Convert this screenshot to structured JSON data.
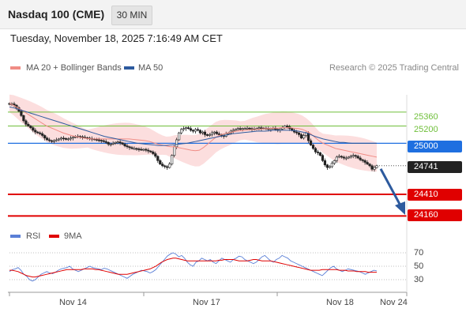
{
  "header": {
    "title": "Nasdaq 100 (CME)",
    "timeframe": "30 MIN"
  },
  "timestamp": "Tuesday, November 18, 2025 7:16:49 AM CET",
  "legend": {
    "ma20_label": "MA 20 + Bollinger Bands",
    "ma50_label": "MA 50",
    "ma20_color": "#f08c85",
    "ma50_color": "#2d5a9e"
  },
  "research_text": "Research © 2025 Trading Central",
  "levels": {
    "resistance_2": "25360",
    "resistance_1": "25200",
    "pivot": "25000",
    "current": "24741",
    "support_1": "24410",
    "support_2": "24160",
    "colors": {
      "resistance": "#6fbf3a",
      "pivot": "#1f6fe0",
      "current": "#222222",
      "support": "#e00000"
    }
  },
  "rsi_legend": {
    "rsi_label": "RSI",
    "ma_label": "9MA",
    "rsi_color": "#5a7fd6",
    "ma_color": "#e00000"
  },
  "rsi_levels": [
    "70",
    "50",
    "30"
  ],
  "x_axis": [
    "Nov 14",
    "Nov 17",
    "Nov 18",
    "Nov 24"
  ],
  "chart_data": {
    "type": "candlestick",
    "ylim": [
      24100,
      25560
    ],
    "close": [
      25450,
      25455,
      25440,
      25410,
      25370,
      25320,
      25260,
      25220,
      25200,
      25180,
      25150,
      25130,
      25120,
      25110,
      25090,
      25060,
      25040,
      25030,
      25025,
      25030,
      25040,
      25050,
      25060,
      25055,
      25045,
      25050,
      25060,
      25070,
      25075,
      25080,
      25075,
      25070,
      25065,
      25060,
      25055,
      25050,
      25045,
      25040,
      25035,
      25030,
      25020,
      25010,
      24990,
      24990,
      25000,
      25010,
      25015,
      25005,
      24990,
      24970,
      24960,
      24950,
      24940,
      24940,
      24935,
      24930,
      24925,
      24930,
      24920,
      24910,
      24900,
      24880,
      24850,
      24800,
      24760,
      24740,
      24730,
      24720,
      24760,
      24860,
      24960,
      25040,
      25120,
      25160,
      25170,
      25180,
      25170,
      25150,
      25140,
      25160,
      25150,
      25120,
      25130,
      25100,
      25090,
      25100,
      25120,
      25130,
      25110,
      25100,
      25090,
      25080,
      25110,
      25120,
      25140,
      25150,
      25160,
      25170,
      25165,
      25170,
      25170,
      25175,
      25170,
      25160,
      25165,
      25170,
      25180,
      25170,
      25175,
      25170,
      25160,
      25170,
      25175,
      25160,
      25150,
      25165,
      25180,
      25200,
      25190,
      25170,
      25150,
      25130,
      25120,
      25100,
      25060,
      25090,
      25120,
      25030,
      24980,
      24940,
      24900,
      24890,
      24860,
      24800,
      24750,
      24720,
      24730,
      24770,
      24800,
      24840,
      24850,
      24840,
      24830,
      24830,
      24840,
      24850,
      24860,
      24850,
      24830,
      24810,
      24800,
      24780,
      24760,
      24740,
      24700,
      24720,
      24741
    ],
    "rsi": [
      42,
      45,
      46,
      48,
      44,
      38,
      35,
      30,
      28,
      30,
      34,
      38,
      40,
      42,
      40,
      39,
      41,
      44,
      46,
      47,
      48,
      50,
      46,
      44,
      42,
      44,
      46,
      48,
      50,
      48,
      47,
      46,
      45,
      47,
      46,
      44,
      42,
      40,
      38,
      36,
      34,
      32,
      35,
      38,
      40,
      42,
      44,
      43,
      42,
      40,
      42,
      45,
      50,
      55,
      60,
      65,
      68,
      70,
      68,
      64,
      66,
      62,
      56,
      52,
      50,
      56,
      58,
      62,
      60,
      58,
      60,
      56,
      54,
      58,
      62,
      60,
      58,
      56,
      60,
      62,
      65,
      64,
      60,
      58,
      56,
      54,
      56,
      60,
      64,
      66,
      62,
      58,
      56,
      60,
      62,
      66,
      64,
      62,
      58,
      56,
      54,
      52,
      50,
      48,
      46,
      44,
      42,
      40,
      38,
      36,
      40,
      44,
      48,
      50,
      46,
      44,
      42,
      44,
      46,
      45,
      44,
      43,
      42,
      40,
      38,
      40,
      42,
      44,
      43
    ],
    "rsi_ma": [
      44,
      44,
      43,
      42,
      40,
      38,
      36,
      35,
      34,
      34,
      35,
      36,
      37,
      38,
      39,
      40,
      41,
      42,
      43,
      44,
      45,
      45,
      45,
      45,
      45,
      45,
      46,
      46,
      46,
      46,
      45,
      45,
      44,
      43,
      42,
      41,
      40,
      39,
      38,
      38,
      38,
      38,
      39,
      40,
      41,
      42,
      43,
      44,
      45,
      46,
      48,
      50,
      53,
      56,
      58,
      60,
      61,
      62,
      62,
      61,
      60,
      59,
      58,
      58,
      58,
      58,
      58,
      58,
      58,
      58,
      58,
      58,
      58,
      59,
      59,
      60,
      60,
      60,
      60,
      59,
      58,
      58,
      58,
      58,
      59,
      60,
      60,
      59,
      58,
      58,
      58,
      58,
      57,
      56,
      55,
      54,
      53,
      52,
      51,
      50,
      49,
      48,
      47,
      46,
      45,
      44,
      44,
      44,
      44,
      45,
      45,
      45,
      45,
      45,
      45,
      44,
      44,
      44,
      43,
      43,
      43,
      42,
      42,
      42,
      42,
      41,
      41,
      41,
      41
    ],
    "ma20": [
      25460,
      25440,
      25410,
      25380,
      25350,
      25320,
      25290,
      25260,
      25230,
      25200,
      25180,
      25160,
      25140,
      25120,
      25105,
      25090,
      25080,
      25070,
      25060,
      25055,
      25050,
      25050,
      25050,
      25050,
      25050,
      25050,
      25050,
      25050,
      25050,
      25050,
      25045,
      25040,
      25035,
      25030,
      25020,
      25005,
      24990,
      24980,
      24970,
      24960,
      24960,
      24950,
      24940,
      24930,
      24920,
      24915,
      24920,
      24950,
      24990,
      25030,
      25070,
      25095,
      25110,
      25120,
      25130,
      25140,
      25145,
      25150,
      25155,
      25160,
      25160,
      25165,
      25170,
      25170,
      25175,
      25175,
      25180,
      25180,
      25180,
      25175,
      25170,
      25160,
      25140,
      25110,
      25070,
      25030,
      25000,
      24980,
      24960,
      24940,
      24930,
      24920,
      24910,
      24900,
      24890,
      24880,
      24870,
      24860,
      24850,
      24840
    ],
    "ma50": [
      25420,
      25410,
      25395,
      25380,
      25365,
      25350,
      25335,
      25320,
      25305,
      25290,
      25275,
      25260,
      25245,
      25230,
      25215,
      25200,
      25185,
      25170,
      25155,
      25140,
      25125,
      25110,
      25095,
      25080,
      25070,
      25060,
      25050,
      25040,
      25030,
      25020,
      25010,
      25000,
      24995,
      24990,
      24985,
      24980,
      24975,
      24975,
      24975,
      24980,
      24985,
      24990,
      24995,
      25000,
      25010,
      25020,
      25030,
      25040,
      25050,
      25060,
      25070,
      25080,
      25090,
      25100,
      25110,
      25115,
      25120,
      25125,
      25130,
      25135,
      25140,
      25140,
      25140,
      25145,
      25150,
      25150,
      25150,
      25150,
      25150,
      25145,
      25140,
      25130,
      25120,
      25100,
      25080,
      25065,
      25050,
      25040,
      25030,
      25020,
      25010,
      25010,
      25005,
      25000,
      25000,
      25000,
      25000,
      25000,
      25000,
      25000
    ]
  }
}
